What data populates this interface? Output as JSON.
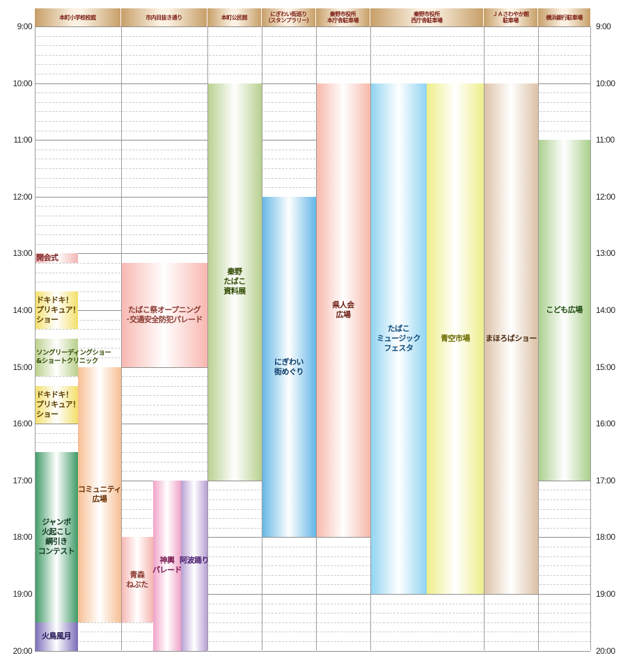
{
  "columns": [
    {
      "id": "c1",
      "label": [
        "本町小学校校庭"
      ]
    },
    {
      "id": "c2",
      "label": [
        "市内目抜き通り"
      ]
    },
    {
      "id": "c3",
      "label": [
        "本町公民館"
      ]
    },
    {
      "id": "c4",
      "label": [
        "にぎわい街巡り",
        "（スタンプラリー）"
      ]
    },
    {
      "id": "c5",
      "label": [
        "秦野市役所",
        "本庁舎駐車場"
      ]
    },
    {
      "id": "c6",
      "label": [
        "秦野市役所",
        "西庁舎駐車場"
      ]
    },
    {
      "id": "c7",
      "label": [
        "ＪＡさわやか館",
        "駐車場"
      ]
    },
    {
      "id": "c8",
      "label": [
        "横浜銀行駐車場"
      ]
    }
  ],
  "times": [
    "9:00",
    "10:00",
    "11:00",
    "12:00",
    "13:00",
    "14:00",
    "15:00",
    "16:00",
    "17:00",
    "18:00",
    "19:00",
    "20:00"
  ],
  "events": [
    {
      "id": "kaikaishiki",
      "lines": [
        "開会式"
      ],
      "start": "13:00",
      "end": "13:10",
      "color": "#f4b6b6",
      "text": "#7a2020"
    },
    {
      "id": "precure1",
      "lines": [
        "ドキドキ！",
        "プリキュア！",
        "ショー"
      ],
      "start": "13:40",
      "end": "14:20",
      "color": "#f3df6a",
      "text": "#5a3b00"
    },
    {
      "id": "song",
      "lines": [
        "ソングリーディングショー",
        "&ショートクリニック"
      ],
      "start": "14:30",
      "end": "15:10",
      "color": "#b9cf8a",
      "text": "#2f4a00"
    },
    {
      "id": "precure2",
      "lines": [
        "ドキドキ！",
        "プリキュア！",
        "ショー"
      ],
      "start": "15:20",
      "end": "16:00",
      "color": "#f3df6a",
      "text": "#5a3b00"
    },
    {
      "id": "community",
      "lines": [
        "コミュニティ",
        "広場"
      ],
      "start": "15:00",
      "end": "19:30",
      "color": "#f7bf93",
      "text": "#6a2e00"
    },
    {
      "id": "jumbo",
      "lines": [
        "ジャンボ",
        "火起こし",
        "綱引き",
        "コンテスト"
      ],
      "start": "16:30",
      "end": "19:30",
      "color": "#3f9a66",
      "text": "#0f3a1e"
    },
    {
      "id": "kachou",
      "lines": [
        "火鳥風月"
      ],
      "start": "19:30",
      "end": "20:00",
      "color": "#7b6cb8",
      "text": "#1e0f50"
    },
    {
      "id": "opening",
      "lines": [
        "たばこ祭オープニング",
        "･交通安全防犯パレード"
      ],
      "start": "13:10",
      "end": "15:00",
      "color": "#f8b7b0",
      "text": "#8a3a30"
    },
    {
      "id": "aomori",
      "lines": [
        "青森",
        "ねぶた"
      ],
      "start": "18:00",
      "end": "19:30",
      "color": "#f6b5b0",
      "text": "#8a3a30"
    },
    {
      "id": "mikoshi",
      "lines": [
        "神輿",
        "パレード"
      ],
      "start": "17:00",
      "end": "20:00",
      "color": "#f0a3c8",
      "text": "#7a1a50"
    },
    {
      "id": "awa",
      "lines": [
        "阿波踊り"
      ],
      "start": "17:00",
      "end": "20:00",
      "color": "#b79ed2",
      "text": "#4a1e6e"
    },
    {
      "id": "shiryou",
      "lines": [
        "秦野",
        "たばこ",
        "資料展"
      ],
      "start": "10:00",
      "end": "17:00",
      "color": "#b7d08e",
      "text": "#2f4a00"
    },
    {
      "id": "nigiwai",
      "lines": [
        "にぎわい",
        "街めぐり"
      ],
      "start": "12:00",
      "end": "18:00",
      "color": "#63b6e6",
      "text": "#0a3a6a"
    },
    {
      "id": "kenjinkai",
      "lines": [
        "県人会",
        "広場"
      ],
      "start": "10:00",
      "end": "18:00",
      "color": "#f7b7aa",
      "text": "#6a1a10"
    },
    {
      "id": "music",
      "lines": [
        "たばこ",
        "ミュージック",
        "フェスタ"
      ],
      "start": "10:00",
      "end": "19:00",
      "color": "#8fd3f2",
      "text": "#0a4a7a"
    },
    {
      "id": "aozora",
      "lines": [
        "青空市場"
      ],
      "start": "10:00",
      "end": "19:00",
      "color": "#eeee8a",
      "text": "#6a6a00"
    },
    {
      "id": "mahoroba",
      "lines": [
        "まほろばショー"
      ],
      "start": "10:00",
      "end": "19:00",
      "color": "#dcc1a6",
      "text": "#4a2a10"
    },
    {
      "id": "kodomo",
      "lines": [
        "こども広場"
      ],
      "start": "11:00",
      "end": "17:00",
      "color": "#a9cf8c",
      "text": "#1f4a10"
    }
  ]
}
